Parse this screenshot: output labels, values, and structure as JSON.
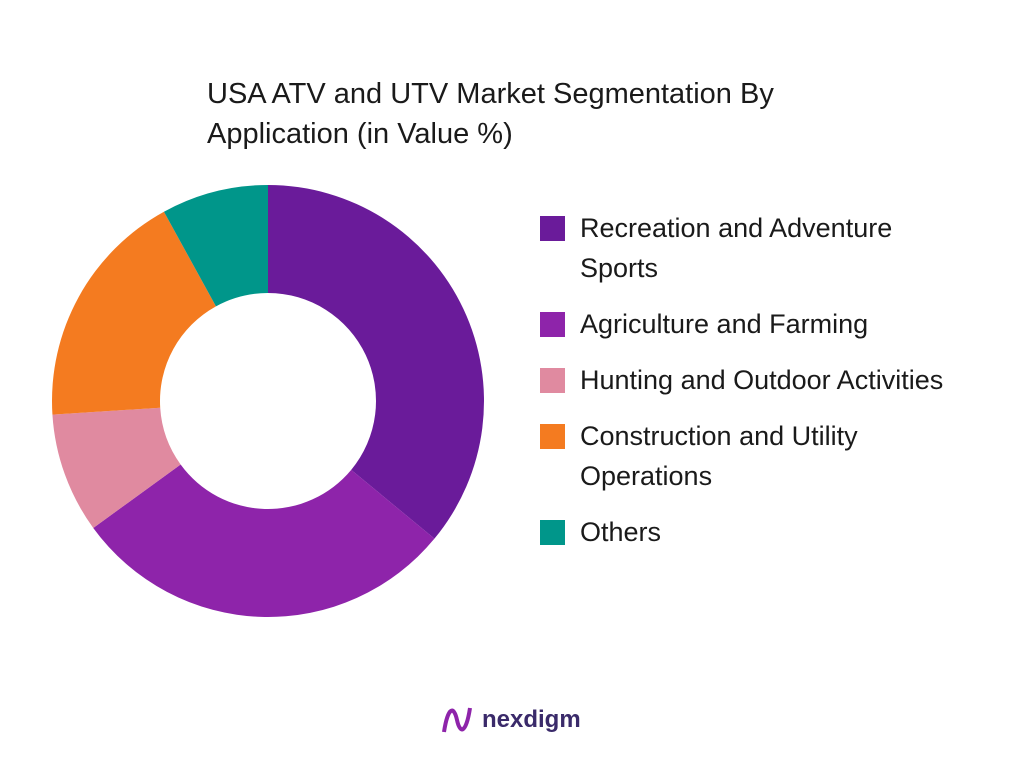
{
  "chart_data": {
    "type": "donut",
    "title": "USA ATV and UTV Market Segmentation By Application (in Value %)",
    "categories": [
      "Recreation and Adventure Sports",
      "Agriculture and Farming",
      "Hunting and Outdoor Activities",
      "Construction and Utility Operations",
      "Others"
    ],
    "values": [
      36,
      29,
      9,
      18,
      8
    ],
    "colors": [
      "#6a1b9a",
      "#8e24aa",
      "#e08aa0",
      "#f47b20",
      "#00968a"
    ],
    "legend": "right"
  },
  "footer": {
    "logo_text": "nexdigm"
  }
}
